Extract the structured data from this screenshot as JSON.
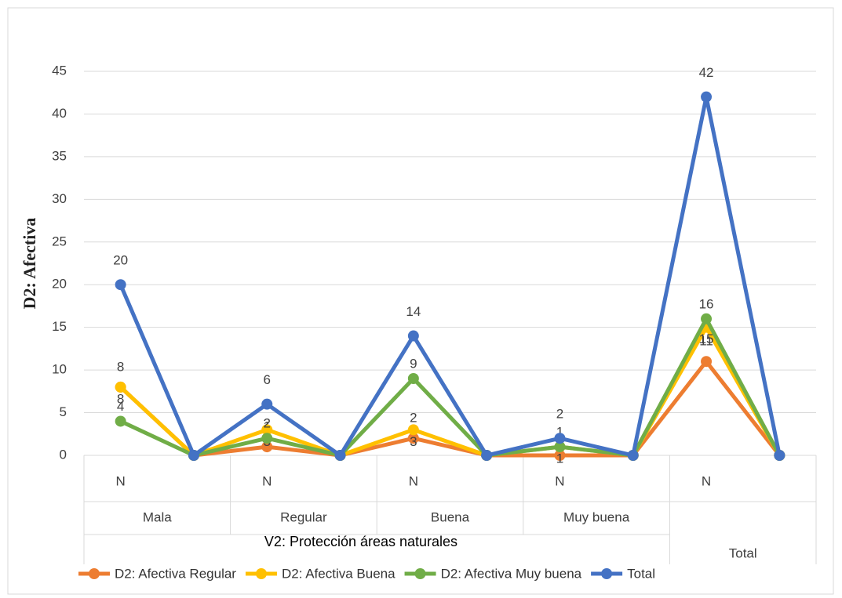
{
  "chart_data": {
    "type": "line",
    "y_label": "D2: Afectiva",
    "x_label": "V2: Protección áreas naturales",
    "categories": [
      "N",
      null,
      "N",
      null,
      "N",
      null,
      "N",
      null,
      "N",
      null
    ],
    "groups": [
      "Mala",
      "Regular",
      "Buena",
      "Muy buena",
      "Total"
    ],
    "series": [
      {
        "name": "D2: Afectiva Regular",
        "color": "#ed7d31",
        "values": [
          8,
          0,
          1,
          0,
          2,
          0,
          0,
          0,
          11,
          0
        ]
      },
      {
        "name": "D2: Afectiva Buena",
        "color": "#ffc000",
        "values": [
          8,
          0,
          3,
          0,
          3,
          0,
          1,
          0,
          15,
          0
        ]
      },
      {
        "name": "D2: Afectiva Muy buena",
        "color": "#70ad47",
        "values": [
          4,
          0,
          2,
          0,
          9,
          0,
          1,
          0,
          16,
          0
        ]
      },
      {
        "name": "Total",
        "color": "#4472c4",
        "values": [
          20,
          0,
          6,
          0,
          14,
          0,
          2,
          0,
          42,
          0
        ]
      }
    ],
    "ylim": [
      0,
      45
    ],
    "yticks": [
      0,
      5,
      10,
      15,
      20,
      25,
      30,
      35,
      40,
      45
    ],
    "grid": true
  }
}
